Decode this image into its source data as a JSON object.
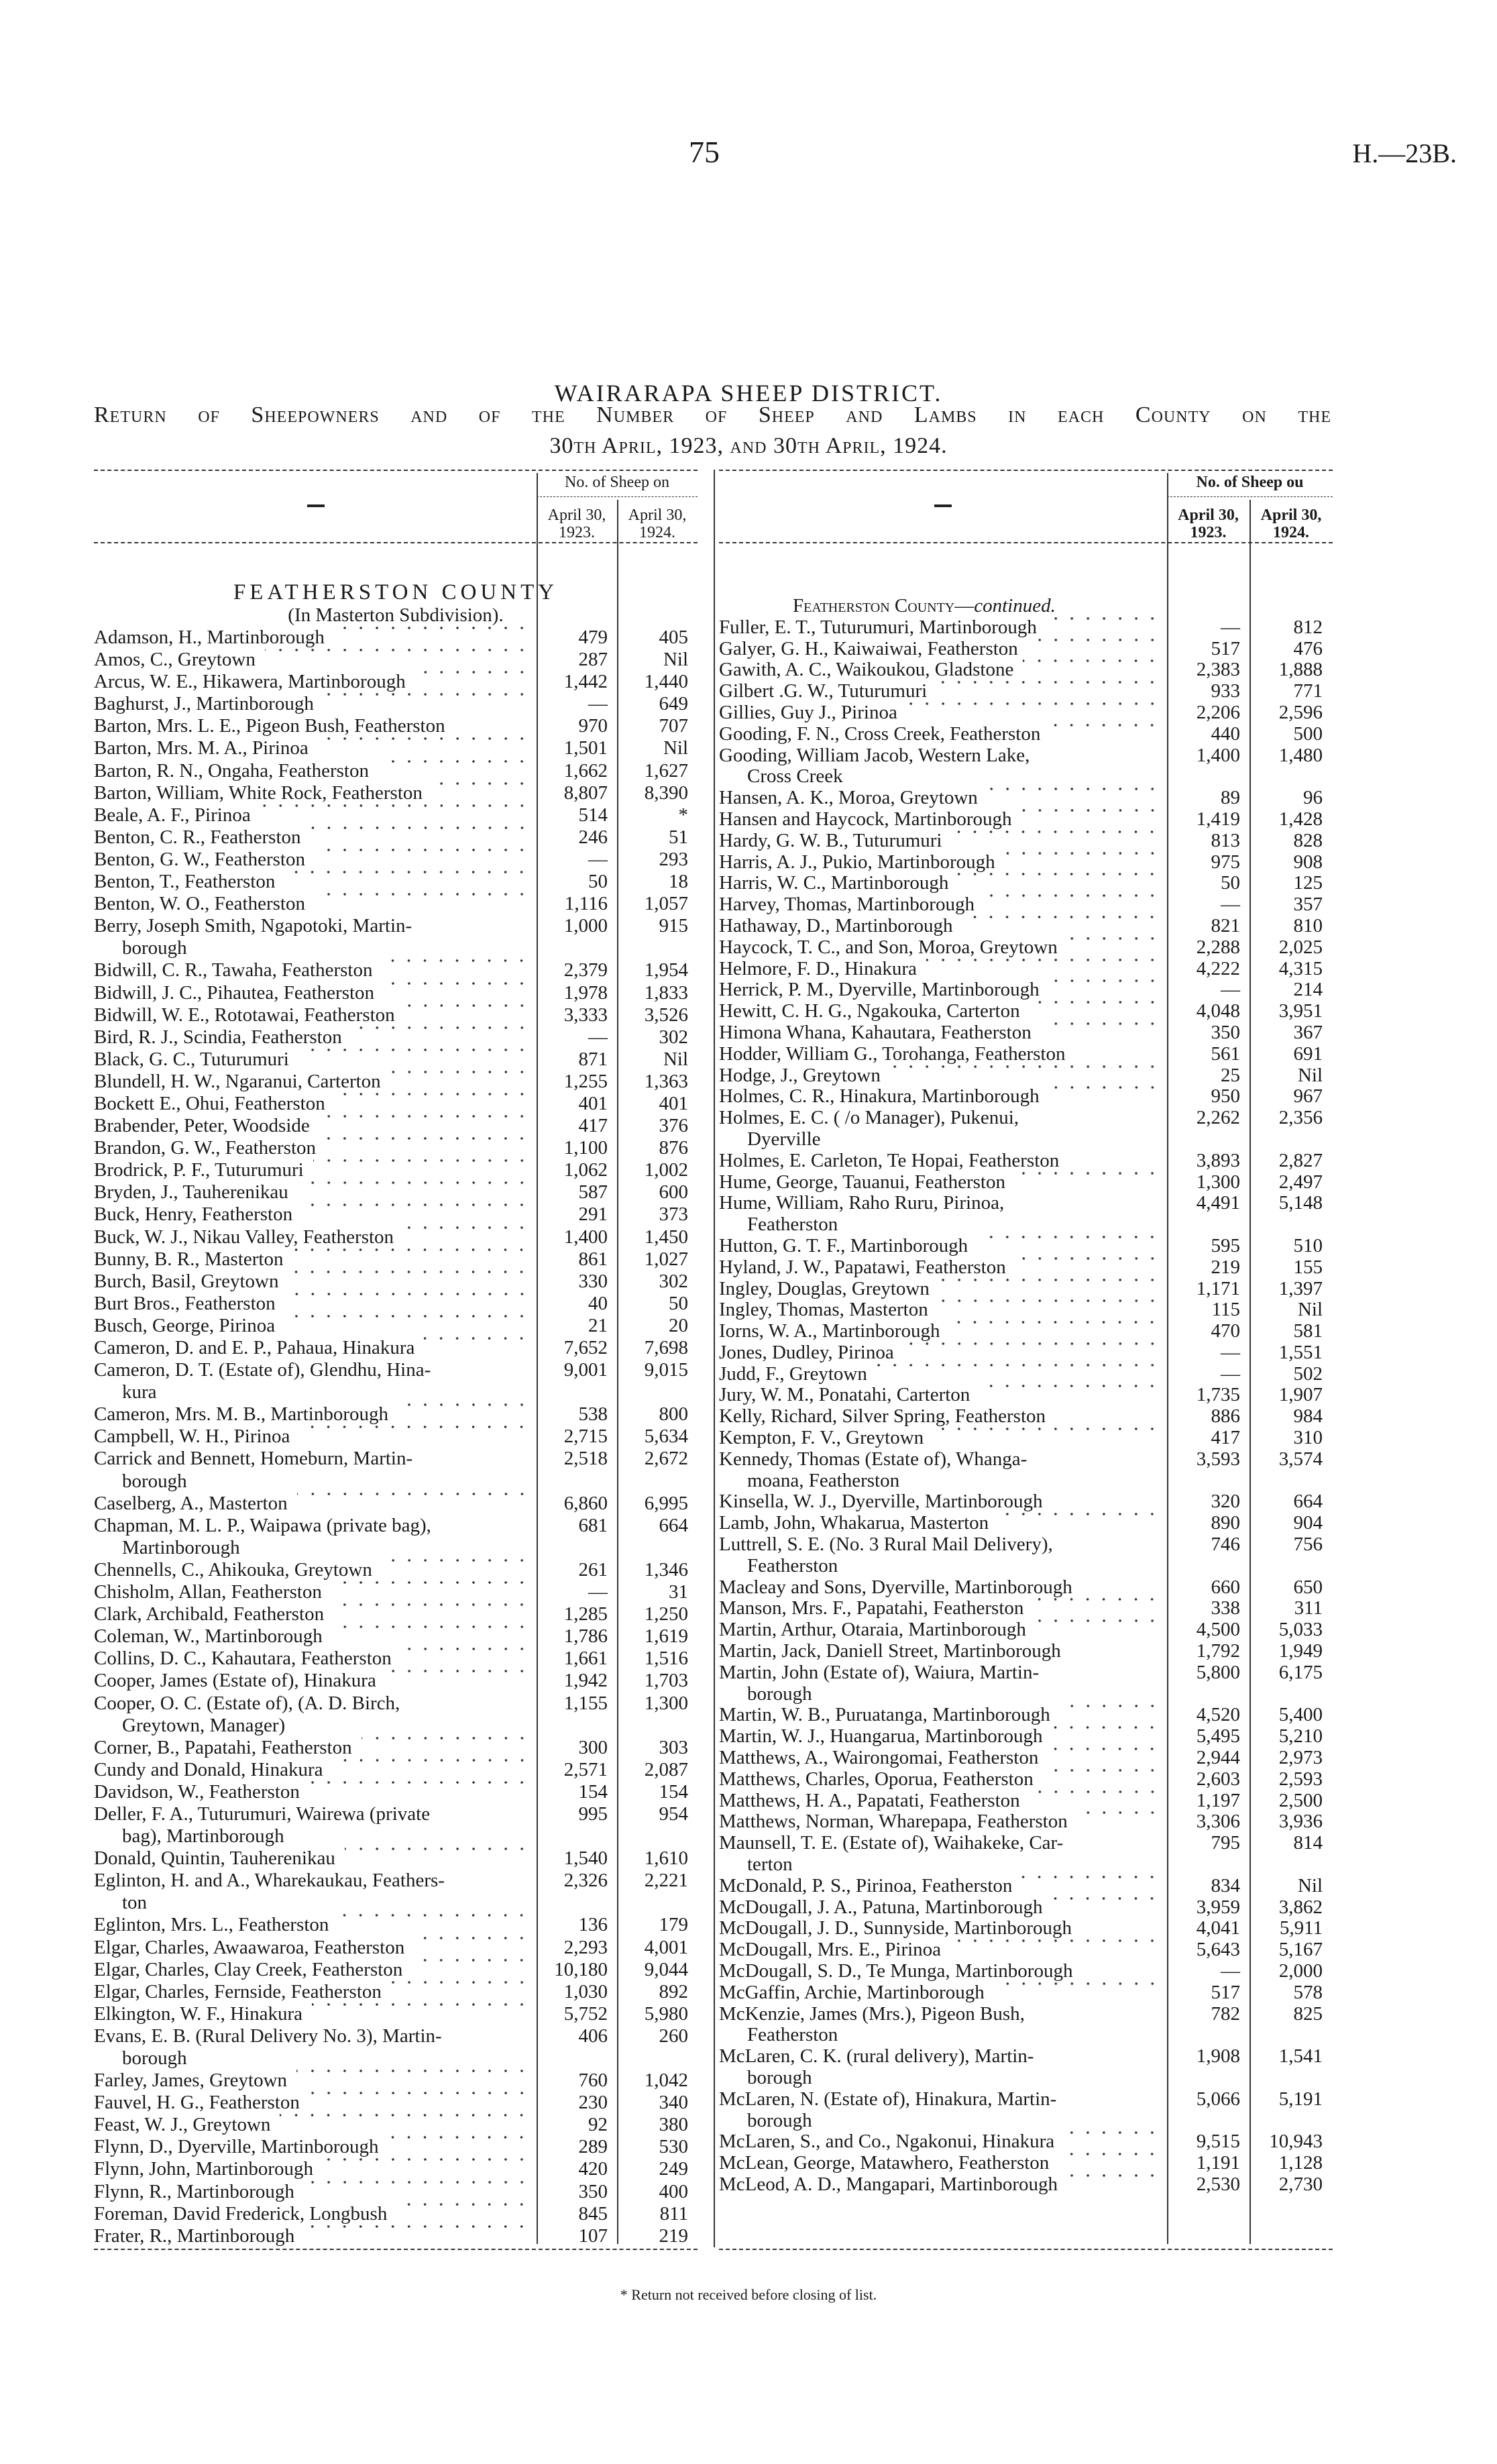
{
  "header": {
    "page_number": "75",
    "reference": "H.—23B."
  },
  "title": "WAIRARAPA SHEEP DISTRICT.",
  "subtitle_line1": "Return of Sheepowners and of the Number of Sheep and Lambs in each County on the",
  "subtitle_line2": "30th April, 1923, and 30th April, 1924.",
  "table_header": {
    "left": {
      "name_col": "—",
      "group": "No. of Sheep on",
      "col1": "April 30, 1923.",
      "col2": "April 30, 1924."
    },
    "right": {
      "name_col": "—",
      "group": "No. of Sheep ou",
      "col1": "April 30, 1923.",
      "col2": "April 30, 1924."
    }
  },
  "left": {
    "heading": "FEATHERSTON COUNTY",
    "subheading": "(In Masterton Subdivision).",
    "rows": [
      {
        "name": "Adamson, H., Martinborough",
        "a": "479",
        "b": "405"
      },
      {
        "name": "Amos, C., Greytown",
        "a": "287",
        "b": "Nil"
      },
      {
        "name": "Arcus, W. E., Hikawera, Martinborough",
        "a": "1,442",
        "b": "1,440"
      },
      {
        "name": "Baghurst, J., Martinborough",
        "a": "—",
        "b": "649"
      },
      {
        "name": "Barton, Mrs. L. E., Pigeon Bush, Featherston",
        "a": "970",
        "b": "707"
      },
      {
        "name": "Barton, Mrs. M. A., Pirinoa",
        "a": "1,501",
        "b": "Nil"
      },
      {
        "name": "Barton, R. N., Ongaha, Featherston",
        "a": "1,662",
        "b": "1,627"
      },
      {
        "name": "Barton, William, White Rock, Featherston",
        "a": "8,807",
        "b": "8,390"
      },
      {
        "name": "Beale, A. F., Pirinoa",
        "a": "514",
        "b": "*"
      },
      {
        "name": "Benton, C. R., Featherston",
        "a": "246",
        "b": "51"
      },
      {
        "name": "Benton, G. W., Featherston",
        "a": "—",
        "b": "293"
      },
      {
        "name": "Benton, T., Featherston",
        "a": "50",
        "b": "18"
      },
      {
        "name": "Benton, W. O., Featherston",
        "a": "1,116",
        "b": "1,057"
      },
      {
        "name": "Berry, Joseph Smith, Ngapotoki, Martin-",
        "cont": "borough",
        "a": "1,000",
        "b": "915"
      },
      {
        "name": "Bidwill, C. R., Tawaha, Featherston",
        "a": "2,379",
        "b": "1,954"
      },
      {
        "name": "Bidwill, J. C., Pihautea, Featherston",
        "a": "1,978",
        "b": "1,833"
      },
      {
        "name": "Bidwill, W. E., Rototawai, Featherston",
        "a": "3,333",
        "b": "3,526"
      },
      {
        "name": "Bird, R. J., Scindia, Featherston",
        "a": "—",
        "b": "302"
      },
      {
        "name": "Black, G. C., Tuturumuri",
        "a": "871",
        "b": "Nil"
      },
      {
        "name": "Blundell, H. W., Ngaranui, Carterton",
        "a": "1,255",
        "b": "1,363"
      },
      {
        "name": "Bockett E., Ohui, Featherston",
        "a": "401",
        "b": "401"
      },
      {
        "name": "Brabender, Peter, Woodside",
        "a": "417",
        "b": "376"
      },
      {
        "name": "Brandon, G. W., Featherston",
        "a": "1,100",
        "b": "876"
      },
      {
        "name": "Brodrick, P. F., Tuturumuri",
        "a": "1,062",
        "b": "1,002"
      },
      {
        "name": "Bryden, J., Tauherenikau",
        "a": "587",
        "b": "600"
      },
      {
        "name": "Buck, Henry, Featherston",
        "a": "291",
        "b": "373"
      },
      {
        "name": "Buck, W. J., Nikau Valley, Featherston",
        "a": "1,400",
        "b": "1,450"
      },
      {
        "name": "Bunny, B. R., Masterton",
        "a": "861",
        "b": "1,027"
      },
      {
        "name": "Burch, Basil, Greytown",
        "a": "330",
        "b": "302"
      },
      {
        "name": "Burt Bros., Featherston",
        "a": "40",
        "b": "50"
      },
      {
        "name": "Busch, George, Pirinoa",
        "a": "21",
        "b": "20"
      },
      {
        "name": "Cameron, D. and E. P., Pahaua, Hinakura",
        "a": "7,652",
        "b": "7,698"
      },
      {
        "name": "Cameron, D. T. (Estate of), Glendhu, Hina-",
        "cont": "kura",
        "a": "9,001",
        "b": "9,015"
      },
      {
        "name": "Cameron, Mrs. M. B., Martinborough",
        "a": "538",
        "b": "800"
      },
      {
        "name": "Campbell, W. H., Pirinoa",
        "a": "2,715",
        "b": "5,634"
      },
      {
        "name": "Carrick and Bennett, Homeburn, Martin-",
        "cont": "borough",
        "a": "2,518",
        "b": "2,672"
      },
      {
        "name": "Caselberg, A., Masterton",
        "a": "6,860",
        "b": "6,995"
      },
      {
        "name": "Chapman, M. L. P., Waipawa (private bag),",
        "cont": "Martinborough",
        "a": "681",
        "b": "664"
      },
      {
        "name": "Chennells, C., Ahikouka, Greytown",
        "a": "261",
        "b": "1,346"
      },
      {
        "name": "Chisholm, Allan, Featherston",
        "a": "—",
        "b": "31"
      },
      {
        "name": "Clark, Archibald, Featherston",
        "a": "1,285",
        "b": "1,250"
      },
      {
        "name": "Coleman, W., Martinborough",
        "a": "1,786",
        "b": "1,619"
      },
      {
        "name": "Collins, D. C., Kahautara, Featherston",
        "a": "1,661",
        "b": "1,516"
      },
      {
        "name": "Cooper, James (Estate of), Hinakura",
        "a": "1,942",
        "b": "1,703"
      },
      {
        "name": "Cooper, O. C. (Estate of), (A. D. Birch,",
        "cont": "Greytown, Manager)",
        "a": "1,155",
        "b": "1,300"
      },
      {
        "name": "Corner, B., Papatahi, Featherston",
        "a": "300",
        "b": "303"
      },
      {
        "name": "Cundy and Donald, Hinakura",
        "a": "2,571",
        "b": "2,087"
      },
      {
        "name": "Davidson, W., Featherston",
        "a": "154",
        "b": "154"
      },
      {
        "name": "Deller, F. A., Tuturumuri, Wairewa (private",
        "cont": "bag), Martinborough",
        "a": "995",
        "b": "954"
      },
      {
        "name": "Donald, Quintin, Tauherenikau",
        "a": "1,540",
        "b": "1,610"
      },
      {
        "name": "Eglinton, H. and A., Wharekaukau, Feathers-",
        "cont": "ton",
        "a": "2,326",
        "b": "2,221"
      },
      {
        "name": "Eglinton, Mrs. L., Featherston",
        "a": "136",
        "b": "179"
      },
      {
        "name": "Elgar, Charles, Awaawaroa, Featherston",
        "a": "2,293",
        "b": "4,001"
      },
      {
        "name": "Elgar, Charles, Clay Creek, Featherston",
        "a": "10,180",
        "b": "9,044"
      },
      {
        "name": "Elgar, Charles, Fernside, Featherston",
        "a": "1,030",
        "b": "892"
      },
      {
        "name": "Elkington, W. F., Hinakura",
        "a": "5,752",
        "b": "5,980"
      },
      {
        "name": "Evans, E. B. (Rural Delivery No. 3), Martin-",
        "cont": "borough",
        "a": "406",
        "b": "260"
      },
      {
        "name": "Farley, James, Greytown",
        "a": "760",
        "b": "1,042"
      },
      {
        "name": "Fauvel, H. G., Featherston",
        "a": "230",
        "b": "340"
      },
      {
        "name": "Feast, W. J., Greytown",
        "a": "92",
        "b": "380"
      },
      {
        "name": "Flynn, D., Dyerville, Martinborough",
        "a": "289",
        "b": "530"
      },
      {
        "name": "Flynn, John, Martinborough",
        "a": "420",
        "b": "249"
      },
      {
        "name": "Flynn, R., Martinborough",
        "a": "350",
        "b": "400"
      },
      {
        "name": "Foreman, David Frederick, Longbush",
        "a": "845",
        "b": "811"
      },
      {
        "name": "Frater, R., Martinborough",
        "a": "107",
        "b": "219"
      }
    ]
  },
  "right": {
    "heading": "Featherston County—",
    "heading_italic": "continued.",
    "rows": [
      {
        "name": "Fuller, E. T., Tuturumuri, Martinborough",
        "a": "—",
        "b": "812"
      },
      {
        "name": "Galyer, G. H., Kaiwaiwai, Featherston",
        "a": "517",
        "b": "476"
      },
      {
        "name": "Gawith, A. C., Waikoukou, Gladstone",
        "a": "2,383",
        "b": "1,888"
      },
      {
        "name": "Gilbert .G. W., Tuturumuri",
        "a": "933",
        "b": "771"
      },
      {
        "name": "Gillies, Guy J., Pirinoa",
        "a": "2,206",
        "b": "2,596"
      },
      {
        "name": "Gooding, F. N., Cross Creek, Featherston",
        "a": "440",
        "b": "500"
      },
      {
        "name": "Gooding, William Jacob, Western Lake,",
        "cont": "Cross Creek",
        "a": "1,400",
        "b": "1,480"
      },
      {
        "name": "Hansen, A. K., Moroa, Greytown",
        "a": "89",
        "b": "96"
      },
      {
        "name": "Hansen and Haycock, Martinborough",
        "a": "1,419",
        "b": "1,428"
      },
      {
        "name": "Hardy, G. W. B., Tuturumuri",
        "a": "813",
        "b": "828"
      },
      {
        "name": "Harris, A. J., Pukio, Martinborough",
        "a": "975",
        "b": "908"
      },
      {
        "name": "Harris, W. C., Martinborough",
        "a": "50",
        "b": "125"
      },
      {
        "name": "Harvey, Thomas, Martinborough",
        "a": "—",
        "b": "357"
      },
      {
        "name": "Hathaway, D., Martinborough",
        "a": "821",
        "b": "810"
      },
      {
        "name": "Haycock, T. C., and Son, Moroa, Greytown",
        "a": "2,288",
        "b": "2,025"
      },
      {
        "name": "Helmore, F. D., Hinakura",
        "a": "4,222",
        "b": "4,315"
      },
      {
        "name": "Herrick, P. M., Dyerville, Martinborough",
        "a": "—",
        "b": "214"
      },
      {
        "name": "Hewitt, C. H. G., Ngakouka, Carterton",
        "a": "4,048",
        "b": "3,951"
      },
      {
        "name": "Himona Whana, Kahautara, Featherston",
        "a": "350",
        "b": "367"
      },
      {
        "name": "Hodder, William G., Torohanga, Featherston",
        "a": "561",
        "b": "691"
      },
      {
        "name": "Hodge, J., Greytown",
        "a": "25",
        "b": "Nil"
      },
      {
        "name": "Holmes, C. R., Hinakura, Martinborough",
        "a": "950",
        "b": "967"
      },
      {
        "name": "Holmes, E. C. ( /o Manager), Pukenui,",
        "cont": "Dyerville",
        "a": "2,262",
        "b": "2,356"
      },
      {
        "name": "Holmes, E. Carleton, Te Hopai, Featherston",
        "a": "3,893",
        "b": "2,827"
      },
      {
        "name": "Hume, George, Tauanui, Featherston",
        "a": "1,300",
        "b": "2,497"
      },
      {
        "name": "Hume, William, Raho Ruru, Pirinoa,",
        "cont": "Featherston",
        "a": "4,491",
        "b": "5,148"
      },
      {
        "name": "Hutton, G. T. F., Martinborough",
        "a": "595",
        "b": "510"
      },
      {
        "name": "Hyland, J. W., Papatawi, Featherston",
        "a": "219",
        "b": "155"
      },
      {
        "name": "Ingley, Douglas, Greytown",
        "a": "1,171",
        "b": "1,397"
      },
      {
        "name": "Ingley, Thomas, Masterton",
        "a": "115",
        "b": "Nil"
      },
      {
        "name": "Iorns, W. A., Martinborough",
        "a": "470",
        "b": "581"
      },
      {
        "name": "Jones, Dudley, Pirinoa",
        "a": "—",
        "b": "1,551"
      },
      {
        "name": "Judd, F., Greytown",
        "a": "—",
        "b": "502"
      },
      {
        "name": "Jury, W. M., Ponatahi, Carterton",
        "a": "1,735",
        "b": "1,907"
      },
      {
        "name": "Kelly, Richard, Silver Spring, Featherston",
        "a": "886",
        "b": "984"
      },
      {
        "name": "Kempton, F. V., Greytown",
        "a": "417",
        "b": "310"
      },
      {
        "name": "Kennedy, Thomas (Estate of), Whanga-",
        "cont": "moana, Featherston",
        "a": "3,593",
        "b": "3,574"
      },
      {
        "name": "Kinsella, W. J., Dyerville, Martinborough",
        "a": "320",
        "b": "664"
      },
      {
        "name": "Lamb, John, Whakarua, Masterton",
        "a": "890",
        "b": "904"
      },
      {
        "name": "Luttrell, S. E. (No. 3 Rural Mail Delivery),",
        "cont": "Featherston",
        "a": "746",
        "b": "756"
      },
      {
        "name": "Macleay and Sons, Dyerville, Martinborough",
        "a": "660",
        "b": "650"
      },
      {
        "name": "Manson, Mrs. F., Papatahi, Featherston",
        "a": "338",
        "b": "311"
      },
      {
        "name": "Martin, Arthur, Otaraia, Martinborough",
        "a": "4,500",
        "b": "5,033"
      },
      {
        "name": "Martin, Jack, Daniell Street, Martinborough",
        "a": "1,792",
        "b": "1,949"
      },
      {
        "name": "Martin, John (Estate of), Waiura, Martin-",
        "cont": "borough",
        "a": "5,800",
        "b": "6,175"
      },
      {
        "name": "Martin, W. B., Puruatanga, Martinborough",
        "a": "4,520",
        "b": "5,400"
      },
      {
        "name": "Martin, W. J., Huangarua, Martinborough",
        "a": "5,495",
        "b": "5,210"
      },
      {
        "name": "Matthews, A., Wairongomai, Featherston",
        "a": "2,944",
        "b": "2,973"
      },
      {
        "name": "Matthews, Charles, Oporua, Featherston",
        "a": "2,603",
        "b": "2,593"
      },
      {
        "name": "Matthews, H. A., Papatati, Featherston",
        "a": "1,197",
        "b": "2,500"
      },
      {
        "name": "Matthews, Norman, Wharepapa, Featherston",
        "a": "3,306",
        "b": "3,936"
      },
      {
        "name": "Maunsell, T. E. (Estate of), Waihakeke, Car-",
        "cont": "terton",
        "a": "795",
        "b": "814"
      },
      {
        "name": "McDonald, P. S., Pirinoa, Featherston",
        "a": "834",
        "b": "Nil"
      },
      {
        "name": "McDougall, J. A., Patuna, Martinborough",
        "a": "3,959",
        "b": "3,862"
      },
      {
        "name": "McDougall, J. D., Sunnyside, Martinborough",
        "a": "4,041",
        "b": "5,911"
      },
      {
        "name": "McDougall, Mrs. E., Pirinoa",
        "a": "5,643",
        "b": "5,167"
      },
      {
        "name": "McDougall, S. D., Te Munga, Martinborough",
        "a": "—",
        "b": "2,000"
      },
      {
        "name": "McGaffin, Archie, Martinborough",
        "a": "517",
        "b": "578"
      },
      {
        "name": "McKenzie, James (Mrs.), Pigeon Bush,",
        "cont": "Featherston",
        "a": "782",
        "b": "825"
      },
      {
        "name": "McLaren, C. K. (rural delivery), Martin-",
        "cont": "borough",
        "a": "1,908",
        "b": "1,541"
      },
      {
        "name": "McLaren, N. (Estate of), Hinakura, Martin-",
        "cont": "borough",
        "a": "5,066",
        "b": "5,191"
      },
      {
        "name": "McLaren, S., and Co., Ngakonui, Hinakura",
        "a": "9,515",
        "b": "10,943"
      },
      {
        "name": "McLean, George, Matawhero, Featherston",
        "a": "1,191",
        "b": "1,128"
      },
      {
        "name": "McLeod, A. D., Mangapari, Martinborough",
        "a": "2,530",
        "b": "2,730"
      }
    ]
  },
  "footnote": "* Return not received before closing of list."
}
